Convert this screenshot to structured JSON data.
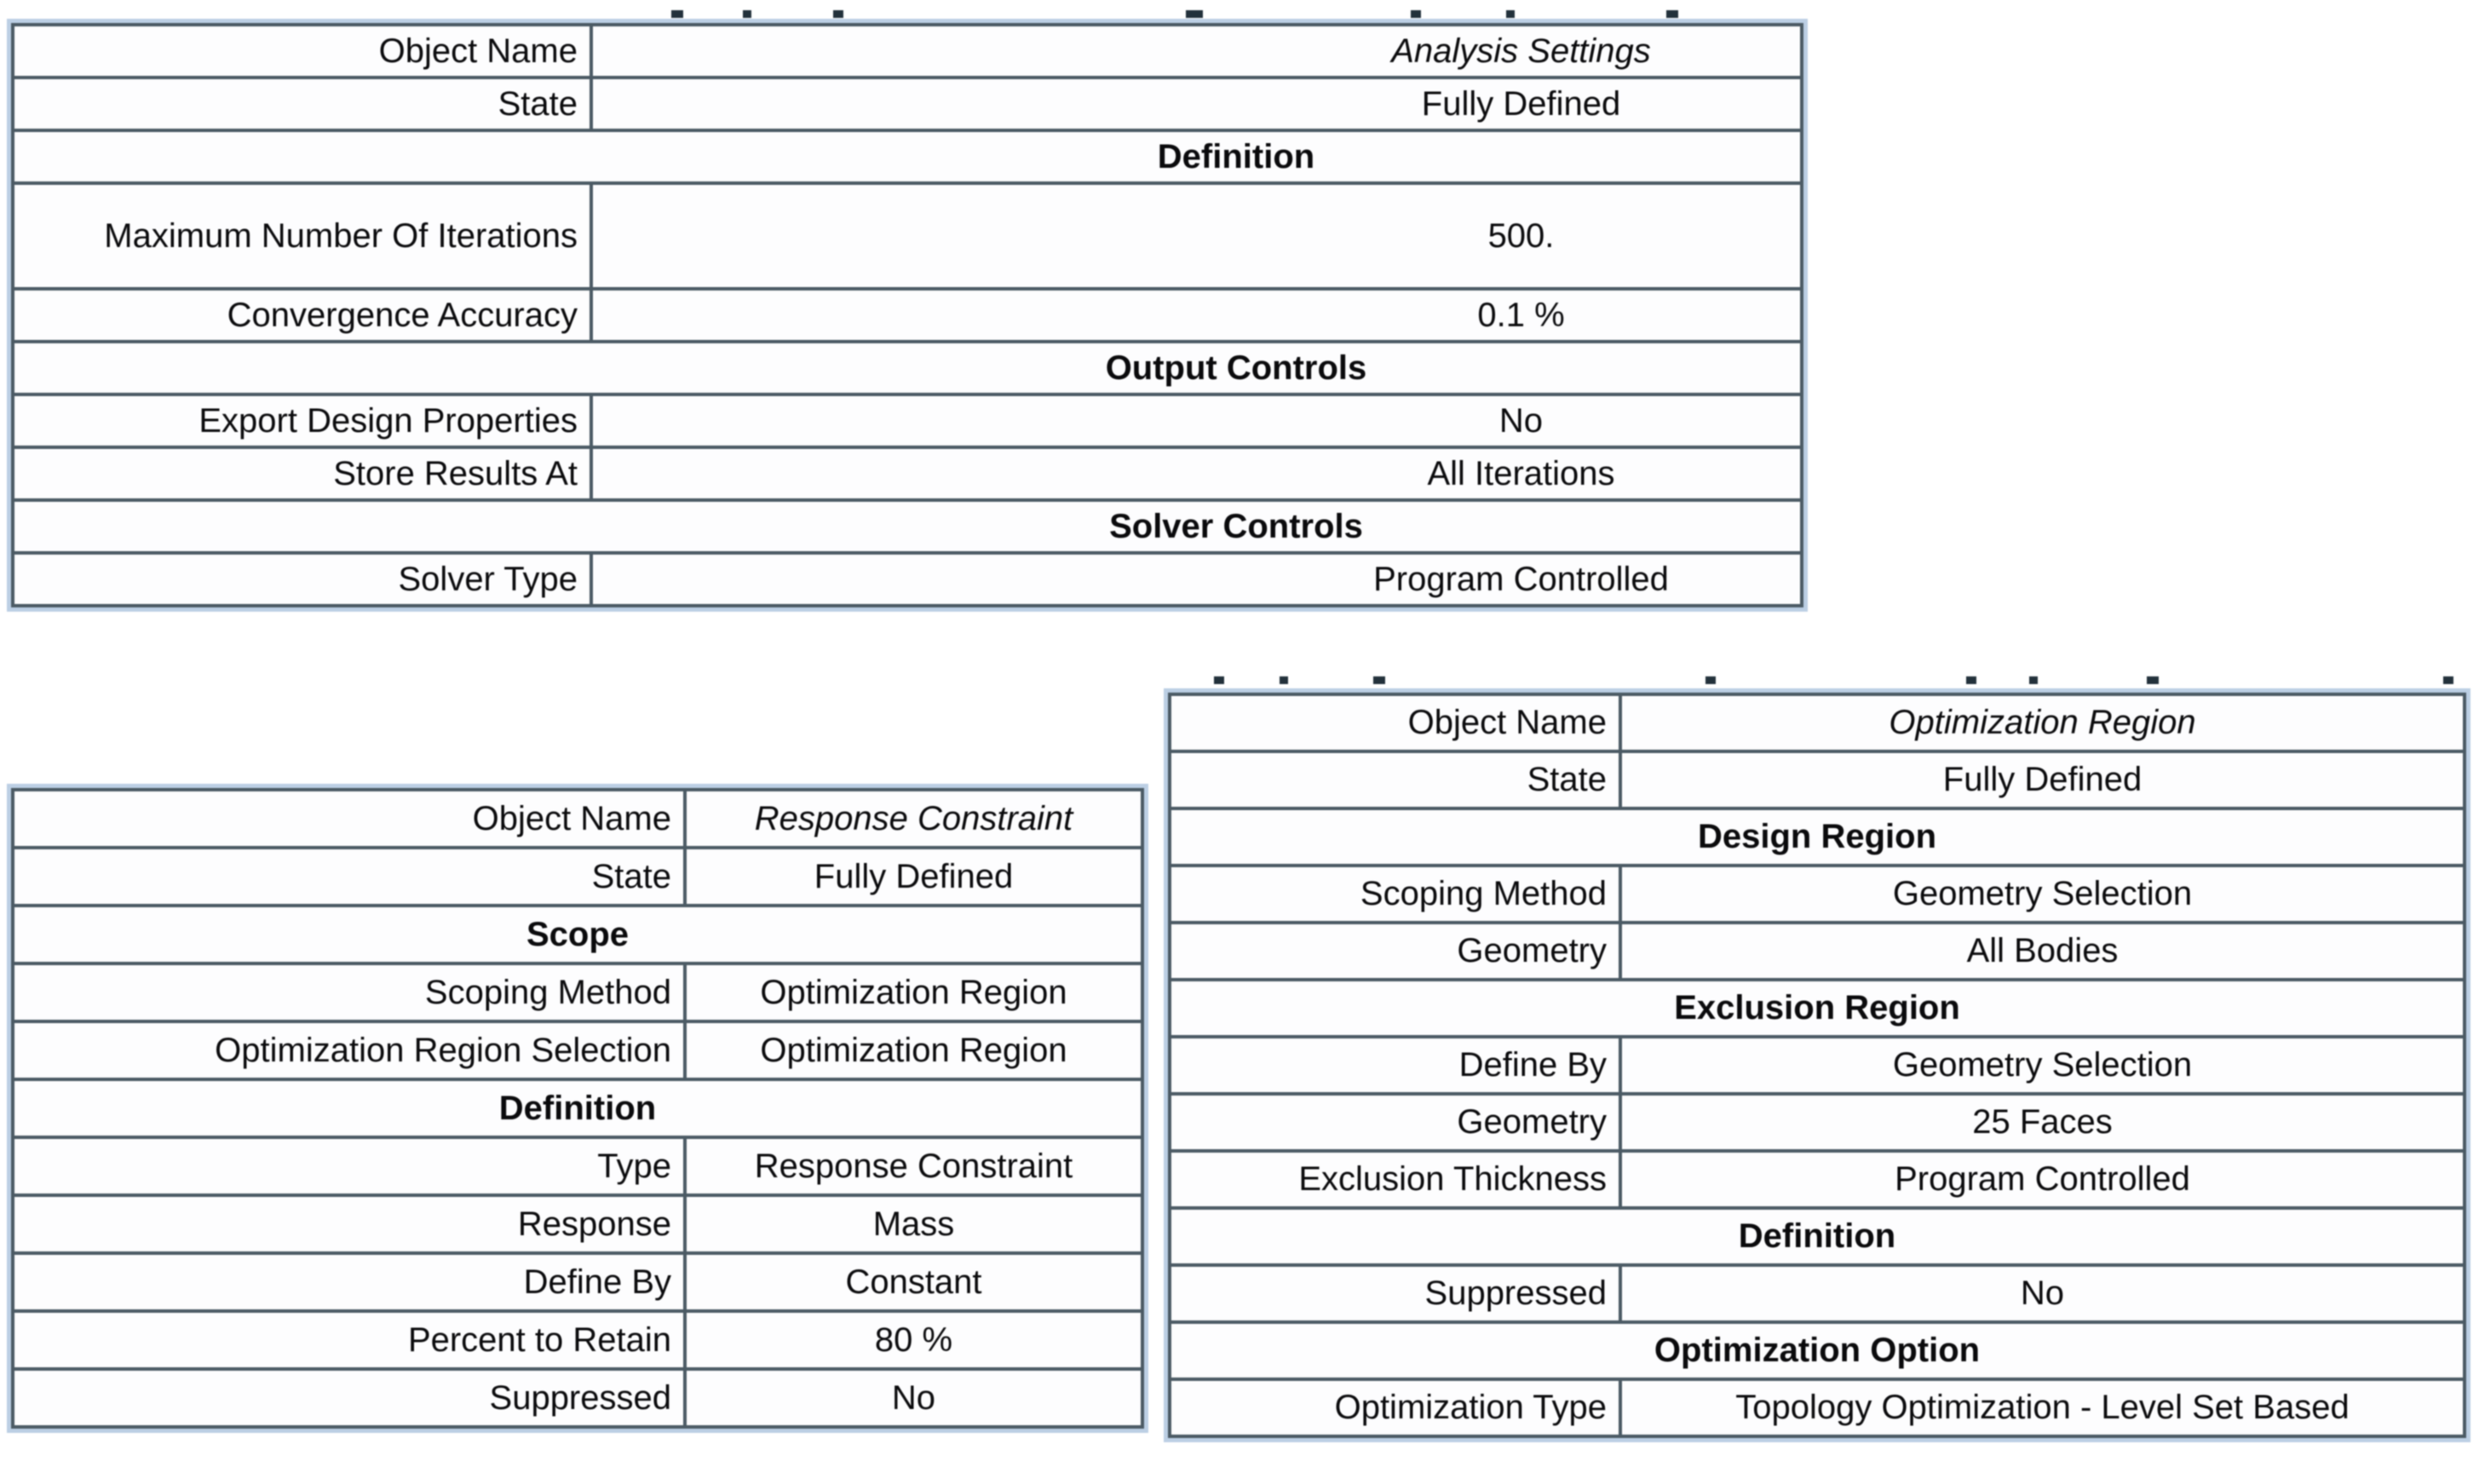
{
  "colors": {
    "border": "#4b5a64",
    "outer_band": "#bccfe4",
    "text": "#0a0a0c",
    "background": "#ffffff"
  },
  "tables": [
    {
      "id": "analysis-settings",
      "rows": [
        {
          "type": "kv",
          "label": "Object Name",
          "value": "Analysis Settings",
          "italic": true
        },
        {
          "type": "kv",
          "label": "State",
          "value": "Fully Defined"
        },
        {
          "type": "header",
          "label": "Definition"
        },
        {
          "type": "kv",
          "label": "Maximum Number Of Iterations",
          "value": "500.",
          "wrap": true
        },
        {
          "type": "kv",
          "label": "Convergence Accuracy",
          "value": "0.1 %"
        },
        {
          "type": "header",
          "label": "Output Controls"
        },
        {
          "type": "kv",
          "label": "Export Design Properties",
          "value": "No"
        },
        {
          "type": "kv",
          "label": "Store Results At",
          "value": "All Iterations"
        },
        {
          "type": "header",
          "label": "Solver Controls"
        },
        {
          "type": "kv",
          "label": "Solver Type",
          "value": "Program Controlled"
        }
      ]
    },
    {
      "id": "response-constraint",
      "rows": [
        {
          "type": "kv",
          "label": "Object Name",
          "value": "Response Constraint",
          "italic": true
        },
        {
          "type": "kv",
          "label": "State",
          "value": "Fully Defined"
        },
        {
          "type": "header",
          "label": "Scope"
        },
        {
          "type": "kv",
          "label": "Scoping Method",
          "value": "Optimization Region"
        },
        {
          "type": "kv",
          "label": "Optimization Region Selection",
          "value": "Optimization Region"
        },
        {
          "type": "header",
          "label": "Definition"
        },
        {
          "type": "kv",
          "label": "Type",
          "value": "Response Constraint"
        },
        {
          "type": "kv",
          "label": "Response",
          "value": "Mass"
        },
        {
          "type": "kv",
          "label": "Define By",
          "value": "Constant"
        },
        {
          "type": "kv",
          "label": "Percent to Retain",
          "value": "80 %"
        },
        {
          "type": "kv",
          "label": "Suppressed",
          "value": "No"
        }
      ]
    },
    {
      "id": "optimization-region",
      "rows": [
        {
          "type": "kv",
          "label": "Object Name",
          "value": "Optimization Region",
          "italic": true
        },
        {
          "type": "kv",
          "label": "State",
          "value": "Fully Defined"
        },
        {
          "type": "header",
          "label": "Design Region"
        },
        {
          "type": "kv",
          "label": "Scoping Method",
          "value": "Geometry Selection"
        },
        {
          "type": "kv",
          "label": "Geometry",
          "value": "All Bodies"
        },
        {
          "type": "header",
          "label": "Exclusion Region"
        },
        {
          "type": "kv",
          "label": "Define By",
          "value": "Geometry Selection"
        },
        {
          "type": "kv",
          "label": "Geometry",
          "value": "25 Faces"
        },
        {
          "type": "kv",
          "label": "Exclusion Thickness",
          "value": "Program Controlled"
        },
        {
          "type": "header",
          "label": "Definition"
        },
        {
          "type": "kv",
          "label": "Suppressed",
          "value": "No"
        },
        {
          "type": "header",
          "label": "Optimization Option"
        },
        {
          "type": "kv",
          "label": "Optimization Type",
          "value": "Topology Optimization - Level Set Based"
        }
      ]
    }
  ]
}
